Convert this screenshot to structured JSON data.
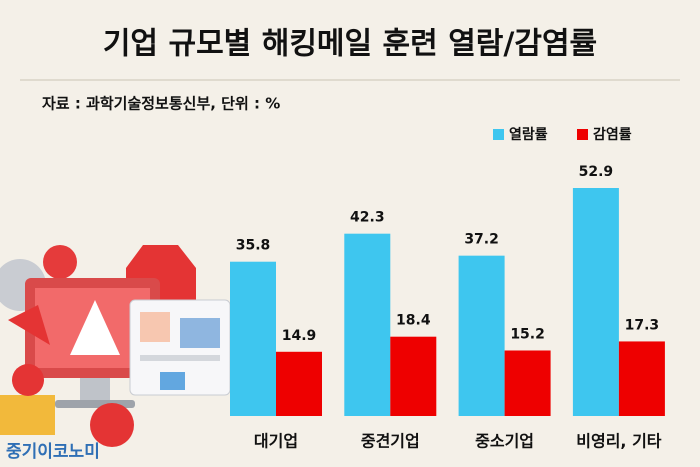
{
  "chart_data": {
    "type": "bar",
    "title": "기업 규모별 해킹메일 훈련 열람/감염률",
    "subtitle": "자료 : 과학기술정보통신부, 단위 : %",
    "categories": [
      "대기업",
      "중견기업",
      "중소기업",
      "비영리, 기타"
    ],
    "series": [
      {
        "name": "열람률",
        "color": "#3ec6ef",
        "values": [
          35.8,
          42.3,
          37.2,
          52.9
        ]
      },
      {
        "name": "감염률",
        "color": "#ee0000",
        "values": [
          14.9,
          18.4,
          15.2,
          17.3
        ]
      }
    ],
    "legend": "top-right",
    "watermark": "중기이코노미"
  }
}
